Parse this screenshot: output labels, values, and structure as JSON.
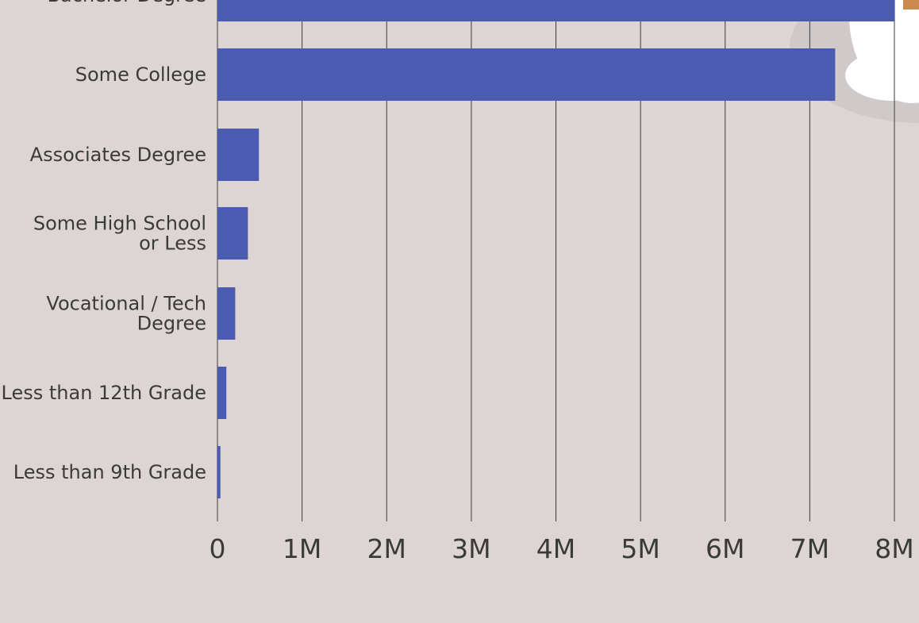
{
  "chart_data": {
    "type": "bar",
    "orientation": "horizontal",
    "bar_color": "#4c5bb2",
    "categories": [
      [
        "Bachelor Degree"
      ],
      [
        "Some College"
      ],
      [
        "Associates Degree"
      ],
      [
        "Some High School",
        "or Less"
      ],
      [
        "Vocational / Tech",
        "Degree"
      ],
      [
        "Less than 12th Grade"
      ],
      [
        "Less than 9th Grade"
      ]
    ],
    "values": [
      8000000,
      7300000,
      490000,
      360000,
      210000,
      105000,
      35000
    ],
    "xticks": [
      "0",
      "1M",
      "2M",
      "3M",
      "4M",
      "5M",
      "6M",
      "7M",
      "8M"
    ],
    "xlim": [
      0,
      8000000
    ],
    "grid": true,
    "title": "",
    "xlabel": "",
    "ylabel": ""
  }
}
